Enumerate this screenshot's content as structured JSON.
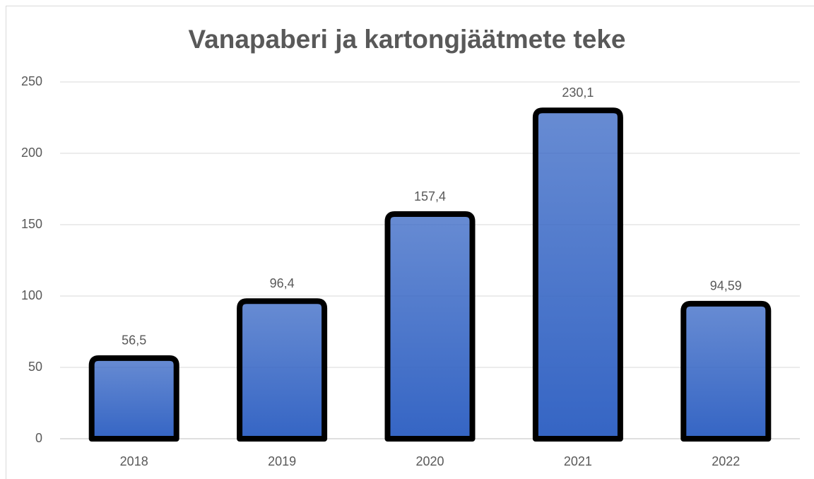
{
  "chart_data": {
    "type": "bar",
    "title": "Vanapaberi ja kartongjäätmete teke",
    "categories": [
      "2018",
      "2019",
      "2020",
      "2021",
      "2022"
    ],
    "values": [
      56.5,
      96.4,
      157.4,
      230.1,
      94.59
    ],
    "value_labels": [
      "56,5",
      "96,4",
      "157,4",
      "230,1",
      "94,59"
    ],
    "color": "#3565c4",
    "ylim": [
      0,
      250
    ],
    "yticks": [
      0,
      50,
      100,
      150,
      200,
      250
    ],
    "grid": true
  }
}
